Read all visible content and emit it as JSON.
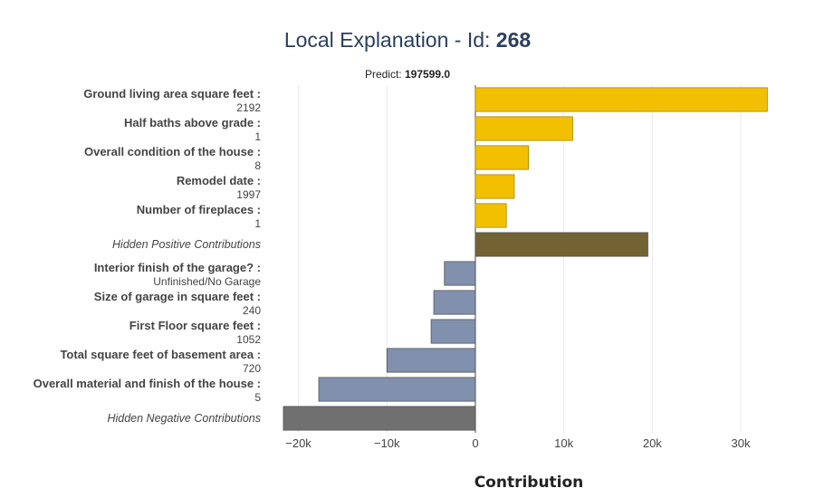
{
  "header": {
    "title_prefix": "Local Explanation - Id: ",
    "id": "268",
    "predict_label": "Predict: ",
    "predict_value": "197599.0"
  },
  "chart_data": {
    "type": "bar",
    "orientation": "horizontal",
    "xlabel": "Contribution",
    "xlim": [
      -22000,
      34500
    ],
    "xticks": [
      -20000,
      -10000,
      0,
      10000,
      20000,
      30000
    ],
    "xtick_labels": [
      "−20k",
      "−10k",
      "0",
      "10k",
      "20k",
      "30k"
    ],
    "grid": true,
    "colors": {
      "positive": "#f2c000",
      "hidden_positive": "#736233",
      "negative": "#8090ad",
      "hidden_negative": "#707070"
    },
    "bars": [
      {
        "feature": "Ground living area square feet :",
        "value_label": "2192",
        "contribution": 33000,
        "kind": "positive"
      },
      {
        "feature": "Half baths above grade :",
        "value_label": "1",
        "contribution": 11000,
        "kind": "positive"
      },
      {
        "feature": "Overall condition of the house :",
        "value_label": "8",
        "contribution": 6000,
        "kind": "positive"
      },
      {
        "feature": "Remodel date :",
        "value_label": "1997",
        "contribution": 4400,
        "kind": "positive"
      },
      {
        "feature": "Number of fireplaces :",
        "value_label": "1",
        "contribution": 3500,
        "kind": "positive"
      },
      {
        "feature": "Hidden Positive Contributions",
        "value_label": "",
        "contribution": 19500,
        "kind": "hidden_positive"
      },
      {
        "feature": "Interior finish of the garage? :",
        "value_label": "Unfinished/No Garage",
        "contribution": -3500,
        "kind": "negative"
      },
      {
        "feature": "Size of garage in square feet :",
        "value_label": "240",
        "contribution": -4700,
        "kind": "negative"
      },
      {
        "feature": "First Floor square feet :",
        "value_label": "1052",
        "contribution": -5000,
        "kind": "negative"
      },
      {
        "feature": "Total square feet of basement area :",
        "value_label": "720",
        "contribution": -10000,
        "kind": "negative"
      },
      {
        "feature": "Overall material and finish of the house :",
        "value_label": "5",
        "contribution": -17700,
        "kind": "negative"
      },
      {
        "feature": "Hidden Negative Contributions",
        "value_label": "",
        "contribution": -21700,
        "kind": "hidden_negative"
      }
    ]
  }
}
